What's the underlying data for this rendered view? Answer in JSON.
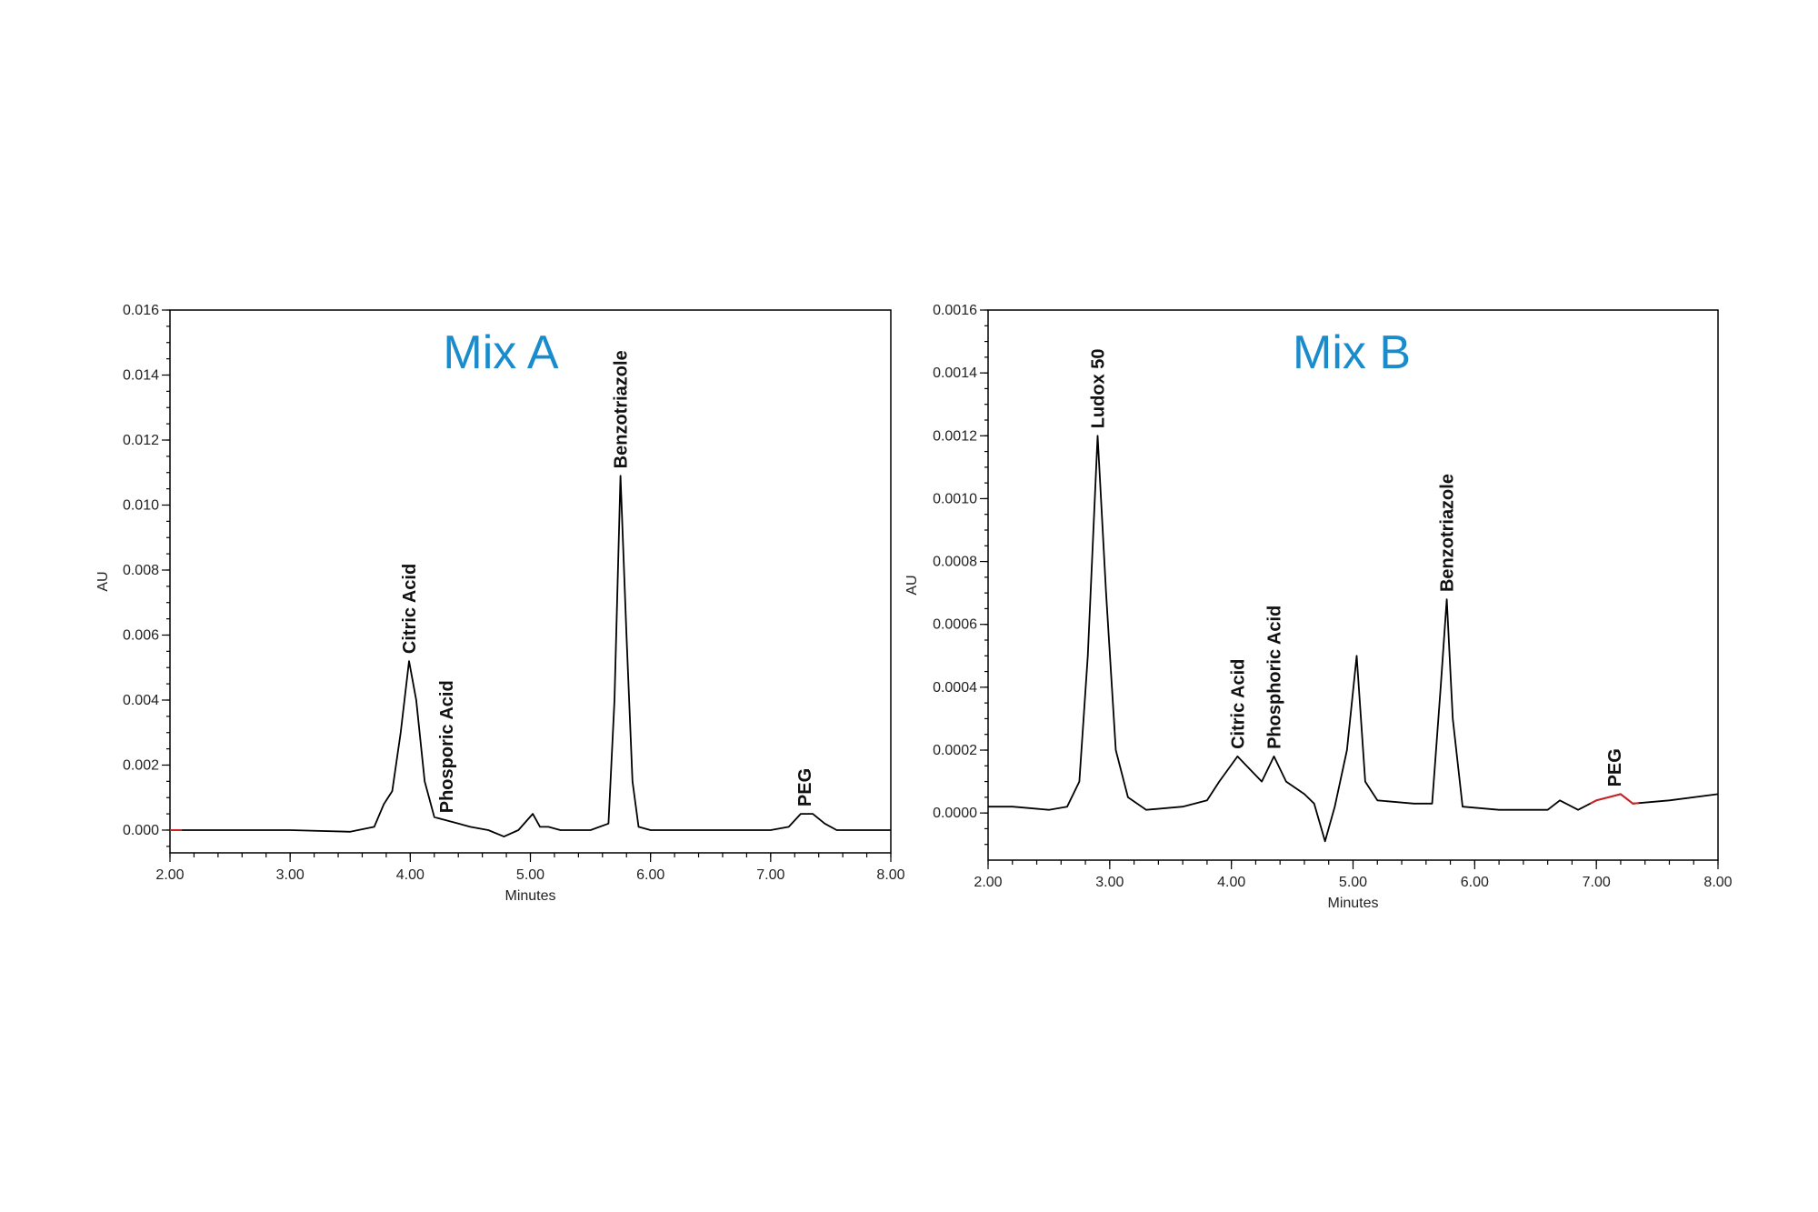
{
  "chart_data": [
    {
      "type": "line",
      "title": "Mix A",
      "title_color": "#1a8ccc",
      "xlabel": "Minutes",
      "ylabel": "AU",
      "xlim": [
        2.0,
        8.0
      ],
      "ylim": [
        -0.0007,
        0.016
      ],
      "x_ticks": [
        "2.00",
        "3.00",
        "4.00",
        "5.00",
        "6.00",
        "7.00",
        "8.00"
      ],
      "y_ticks": [
        "0.000",
        "0.002",
        "0.004",
        "0.006",
        "0.008",
        "0.010",
        "0.012",
        "0.014",
        "0.016"
      ],
      "grid": false,
      "line_color": "#000000",
      "highlight_color": "#cc2222",
      "highlight_range": [
        2.0,
        2.1
      ],
      "series": [
        {
          "x": [
            2.0,
            3.0,
            3.5,
            3.7,
            3.78,
            3.85,
            3.92,
            3.99,
            4.05,
            4.12,
            4.2,
            4.3,
            4.4,
            4.5,
            4.65,
            4.78,
            4.9,
            5.02,
            5.08,
            5.15,
            5.25,
            5.5,
            5.65,
            5.7,
            5.75,
            5.8,
            5.85,
            5.9,
            6.0,
            6.5,
            7.0,
            7.15,
            7.25,
            7.35,
            7.45,
            7.55,
            8.0
          ],
          "y": [
            0,
            0,
            -5e-05,
            0.0001,
            0.0008,
            0.0012,
            0.003,
            0.0052,
            0.004,
            0.0015,
            0.0004,
            0.0003,
            0.0002,
            0.0001,
            0.0,
            -0.0002,
            0.0,
            0.0005,
            0.0001,
            0.0001,
            0.0,
            0.0,
            0.0002,
            0.004,
            0.0109,
            0.006,
            0.0015,
            0.0001,
            0,
            0,
            0,
            0.0001,
            0.0005,
            0.0005,
            0.0002,
            0.0,
            0
          ]
        }
      ],
      "annotations": [
        {
          "text": "Citric Acid",
          "x": 3.99,
          "y": 0.0052
        },
        {
          "text": "Phosporic Acid",
          "x": 4.3,
          "y": 0.0003
        },
        {
          "text": "Benzotriazole",
          "x": 5.75,
          "y": 0.0109
        },
        {
          "text": "PEG",
          "x": 7.28,
          "y": 0.0005
        }
      ]
    },
    {
      "type": "line",
      "title": "Mix B",
      "title_color": "#1a8ccc",
      "xlabel": "Minutes",
      "ylabel": "AU",
      "xlim": [
        2.0,
        8.0
      ],
      "ylim": [
        -0.00015,
        0.0016
      ],
      "x_ticks": [
        "2.00",
        "3.00",
        "4.00",
        "5.00",
        "6.00",
        "7.00",
        "8.00"
      ],
      "y_ticks": [
        "0.0000",
        "0.0002",
        "0.0004",
        "0.0006",
        "0.0008",
        "0.0010",
        "0.0012",
        "0.0014",
        "0.0016"
      ],
      "grid": false,
      "line_color": "#000000",
      "highlight_color": "#cc2222",
      "highlight_range": [
        6.95,
        7.35
      ],
      "series": [
        {
          "x": [
            2.0,
            2.2,
            2.5,
            2.65,
            2.75,
            2.82,
            2.9,
            2.97,
            3.05,
            3.15,
            3.3,
            3.6,
            3.8,
            3.9,
            4.05,
            4.15,
            4.25,
            4.35,
            4.45,
            4.6,
            4.68,
            4.77,
            4.85,
            4.95,
            5.03,
            5.1,
            5.2,
            5.5,
            5.65,
            5.72,
            5.77,
            5.82,
            5.9,
            6.2,
            6.6,
            6.7,
            6.85,
            7.0,
            7.2,
            7.3,
            7.6,
            8.0
          ],
          "y": [
            2e-05,
            2e-05,
            1e-05,
            2e-05,
            0.0001,
            0.0005,
            0.0012,
            0.0007,
            0.0002,
            5e-05,
            1e-05,
            2e-05,
            4e-05,
            0.0001,
            0.00018,
            0.00014,
            0.0001,
            0.00018,
            0.0001,
            6e-05,
            3e-05,
            -9e-05,
            2e-05,
            0.0002,
            0.0005,
            0.0001,
            4e-05,
            3e-05,
            3e-05,
            0.0004,
            0.00068,
            0.0003,
            2e-05,
            1e-05,
            1e-05,
            4e-05,
            1e-05,
            4e-05,
            6e-05,
            3e-05,
            4e-05,
            6e-05
          ]
        }
      ],
      "annotations": [
        {
          "text": "Ludox 50",
          "x": 2.9,
          "y": 0.0012
        },
        {
          "text": "Citric Acid",
          "x": 4.05,
          "y": 0.00018
        },
        {
          "text": "Phosphoric Acid",
          "x": 4.35,
          "y": 0.00018
        },
        {
          "text": "Benzotriazole",
          "x": 5.77,
          "y": 0.00068
        },
        {
          "text": "PEG",
          "x": 7.15,
          "y": 6e-05
        }
      ]
    }
  ]
}
